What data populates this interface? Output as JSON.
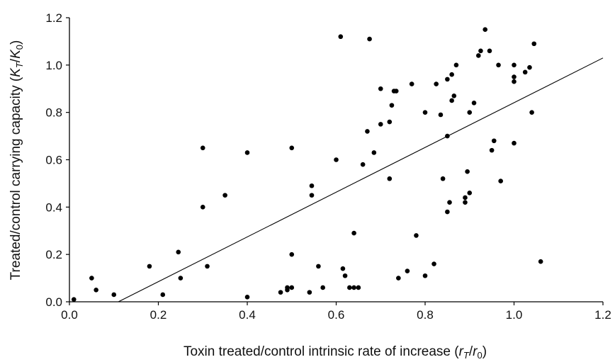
{
  "chart_data": {
    "type": "scatter",
    "xlabel": "Toxin treated/control intrinsic rate of increase (r_T/r_0)",
    "ylabel": "Treated/control carrying capacity (K_T/K_0)",
    "xlabel_parts": {
      "text": "Toxin treated/control intrinsic rate of increase (",
      "v1": "r",
      "s1": "T",
      "slash": "/",
      "v2": "r",
      "s2": "0",
      "close": ")"
    },
    "ylabel_parts": {
      "text": "Treated/control carrying capacity (",
      "v1": "K",
      "s1": "T",
      "slash": "/",
      "v2": "K",
      "s2": "0",
      "close": ")"
    },
    "xlim": [
      0,
      1.2
    ],
    "ylim": [
      0,
      1.2
    ],
    "xticks": [
      "0.0",
      "0.2",
      "0.4",
      "0.6",
      "0.8",
      "1.0",
      "1.2"
    ],
    "yticks": [
      "0.0",
      "0.2",
      "0.4",
      "0.6",
      "0.8",
      "1.0",
      "1.2"
    ],
    "grid": false,
    "colors": {
      "points": "#000000",
      "line": "#000000",
      "axes": "#000000"
    },
    "trendline": {
      "x": [
        0.11,
        1.2
      ],
      "y": [
        0.0,
        1.03
      ]
    },
    "series": [
      {
        "points": [
          [
            0.01,
            0.01
          ],
          [
            0.05,
            0.1
          ],
          [
            0.06,
            0.05
          ],
          [
            0.1,
            0.03
          ],
          [
            0.18,
            0.15
          ],
          [
            0.21,
            0.03
          ],
          [
            0.245,
            0.21
          ],
          [
            0.25,
            0.1
          ],
          [
            0.3,
            0.65
          ],
          [
            0.3,
            0.4
          ],
          [
            0.31,
            0.15
          ],
          [
            0.35,
            0.45
          ],
          [
            0.4,
            0.63
          ],
          [
            0.4,
            0.02
          ],
          [
            0.475,
            0.04
          ],
          [
            0.49,
            0.06
          ],
          [
            0.49,
            0.05
          ],
          [
            0.5,
            0.65
          ],
          [
            0.5,
            0.2
          ],
          [
            0.5,
            0.06
          ],
          [
            0.54,
            0.04
          ],
          [
            0.545,
            0.49
          ],
          [
            0.545,
            0.45
          ],
          [
            0.56,
            0.15
          ],
          [
            0.57,
            0.06
          ],
          [
            0.6,
            0.6
          ],
          [
            0.61,
            1.12
          ],
          [
            0.615,
            0.14
          ],
          [
            0.62,
            0.11
          ],
          [
            0.63,
            0.06
          ],
          [
            0.64,
            0.29
          ],
          [
            0.64,
            0.06
          ],
          [
            0.65,
            0.06
          ],
          [
            0.66,
            0.58
          ],
          [
            0.67,
            0.72
          ],
          [
            0.675,
            1.11
          ],
          [
            0.685,
            0.63
          ],
          [
            0.7,
            0.9
          ],
          [
            0.7,
            0.75
          ],
          [
            0.72,
            0.52
          ],
          [
            0.72,
            0.76
          ],
          [
            0.725,
            0.83
          ],
          [
            0.73,
            0.89
          ],
          [
            0.735,
            0.89
          ],
          [
            0.74,
            0.1
          ],
          [
            0.76,
            0.13
          ],
          [
            0.77,
            0.92
          ],
          [
            0.78,
            0.28
          ],
          [
            0.8,
            0.8
          ],
          [
            0.8,
            0.11
          ],
          [
            0.82,
            0.16
          ],
          [
            0.825,
            0.92
          ],
          [
            0.835,
            0.79
          ],
          [
            0.84,
            0.52
          ],
          [
            0.85,
            0.94
          ],
          [
            0.85,
            0.7
          ],
          [
            0.85,
            0.38
          ],
          [
            0.855,
            0.42
          ],
          [
            0.86,
            0.96
          ],
          [
            0.86,
            0.85
          ],
          [
            0.865,
            0.87
          ],
          [
            0.87,
            1.0
          ],
          [
            0.89,
            0.44
          ],
          [
            0.89,
            0.42
          ],
          [
            0.895,
            0.55
          ],
          [
            0.9,
            0.46
          ],
          [
            0.9,
            0.8
          ],
          [
            0.91,
            0.84
          ],
          [
            0.92,
            1.04
          ],
          [
            0.925,
            1.06
          ],
          [
            0.935,
            1.15
          ],
          [
            0.945,
            1.06
          ],
          [
            0.95,
            0.64
          ],
          [
            0.955,
            0.68
          ],
          [
            0.965,
            1.0
          ],
          [
            0.97,
            0.51
          ],
          [
            1.0,
            1.0
          ],
          [
            1.0,
            0.95
          ],
          [
            1.0,
            0.93
          ],
          [
            1.0,
            0.67
          ],
          [
            1.025,
            0.97
          ],
          [
            1.035,
            0.99
          ],
          [
            1.04,
            0.8
          ],
          [
            1.045,
            1.09
          ],
          [
            1.06,
            0.17
          ]
        ]
      }
    ]
  }
}
